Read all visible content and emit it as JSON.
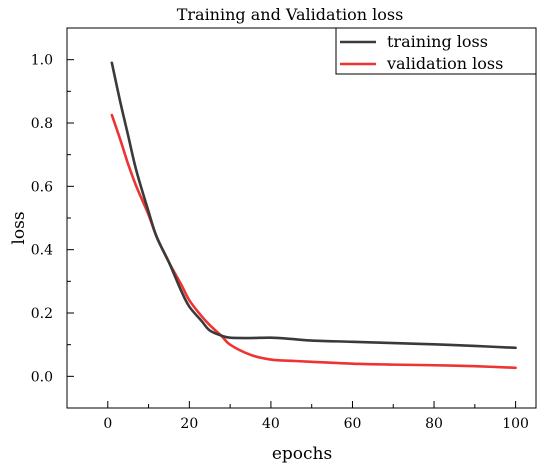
{
  "chart_data": {
    "type": "line",
    "title": "Training and Validation loss",
    "xlabel": "epochs",
    "ylabel": "loss",
    "xlim": [
      -10,
      105
    ],
    "ylim": [
      -0.1,
      1.1
    ],
    "xticks": [
      0,
      20,
      40,
      60,
      80,
      100
    ],
    "yticks": [
      0.0,
      0.2,
      0.4,
      0.6,
      0.8,
      1.0
    ],
    "ytick_labels": [
      "0.0",
      "0.2",
      "0.4",
      "0.6",
      "0.8",
      "1.0"
    ],
    "grid": false,
    "legend_position": "top-right",
    "series": [
      {
        "name": "training loss",
        "color": "#3a3a3a",
        "x": [
          1,
          3,
          5,
          7,
          10,
          12,
          15,
          18,
          20,
          23,
          25,
          28,
          30,
          35,
          40,
          45,
          50,
          60,
          70,
          80,
          90,
          100
        ],
        "y": [
          0.99,
          0.87,
          0.76,
          0.65,
          0.52,
          0.44,
          0.36,
          0.27,
          0.22,
          0.175,
          0.145,
          0.128,
          0.122,
          0.121,
          0.122,
          0.118,
          0.113,
          0.109,
          0.105,
          0.101,
          0.096,
          0.09
        ]
      },
      {
        "name": "validation loss",
        "color": "#ee3333",
        "x": [
          1,
          3,
          5,
          7,
          10,
          12,
          15,
          18,
          20,
          23,
          25,
          28,
          30,
          35,
          40,
          45,
          50,
          60,
          70,
          80,
          90,
          100
        ],
        "y": [
          0.825,
          0.75,
          0.67,
          0.6,
          0.51,
          0.44,
          0.36,
          0.29,
          0.24,
          0.19,
          0.162,
          0.126,
          0.1,
          0.068,
          0.053,
          0.049,
          0.046,
          0.04,
          0.037,
          0.035,
          0.032,
          0.027
        ]
      }
    ]
  }
}
